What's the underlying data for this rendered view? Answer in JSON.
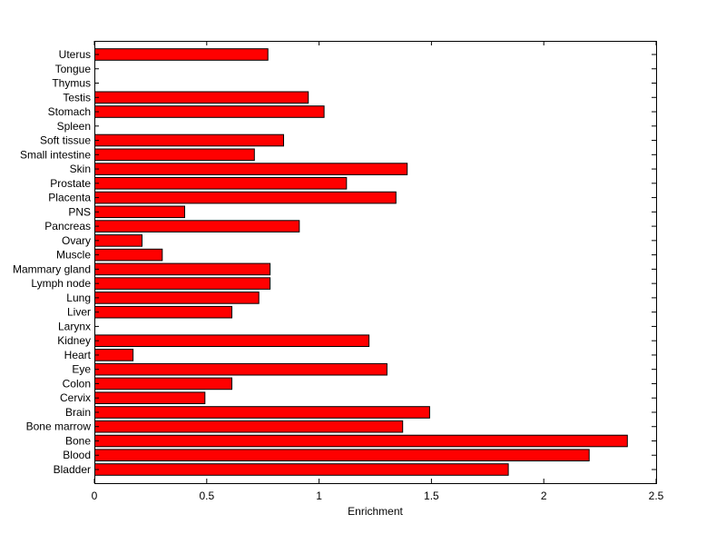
{
  "chart_data": {
    "type": "bar",
    "orientation": "horizontal",
    "xlabel": "Enrichment",
    "ylabel": "",
    "title": "",
    "xlim": [
      0,
      2.5
    ],
    "xticks": [
      "0",
      "0.5",
      "1",
      "1.5",
      "2",
      "2.5"
    ],
    "grid": false,
    "bar_color": "#ff0000",
    "categories": [
      "Bladder",
      "Blood",
      "Bone",
      "Bone marrow",
      "Brain",
      "Cervix",
      "Colon",
      "Eye",
      "Heart",
      "Kidney",
      "Larynx",
      "Liver",
      "Lung",
      "Lymph node",
      "Mammary gland",
      "Muscle",
      "Ovary",
      "Pancreas",
      "PNS",
      "Placenta",
      "Prostate",
      "Skin",
      "Small intestine",
      "Soft tissue",
      "Spleen",
      "Stomach",
      "Testis",
      "Thymus",
      "Tongue",
      "Uterus"
    ],
    "values": [
      1.84,
      2.2,
      2.37,
      1.37,
      1.49,
      0.49,
      0.61,
      1.3,
      0.17,
      1.22,
      0,
      0.61,
      0.73,
      0.78,
      0.78,
      0.3,
      0.21,
      0.91,
      0.4,
      1.34,
      1.12,
      1.39,
      0.71,
      0.84,
      0,
      1.02,
      0.95,
      0,
      0,
      0.77
    ]
  }
}
